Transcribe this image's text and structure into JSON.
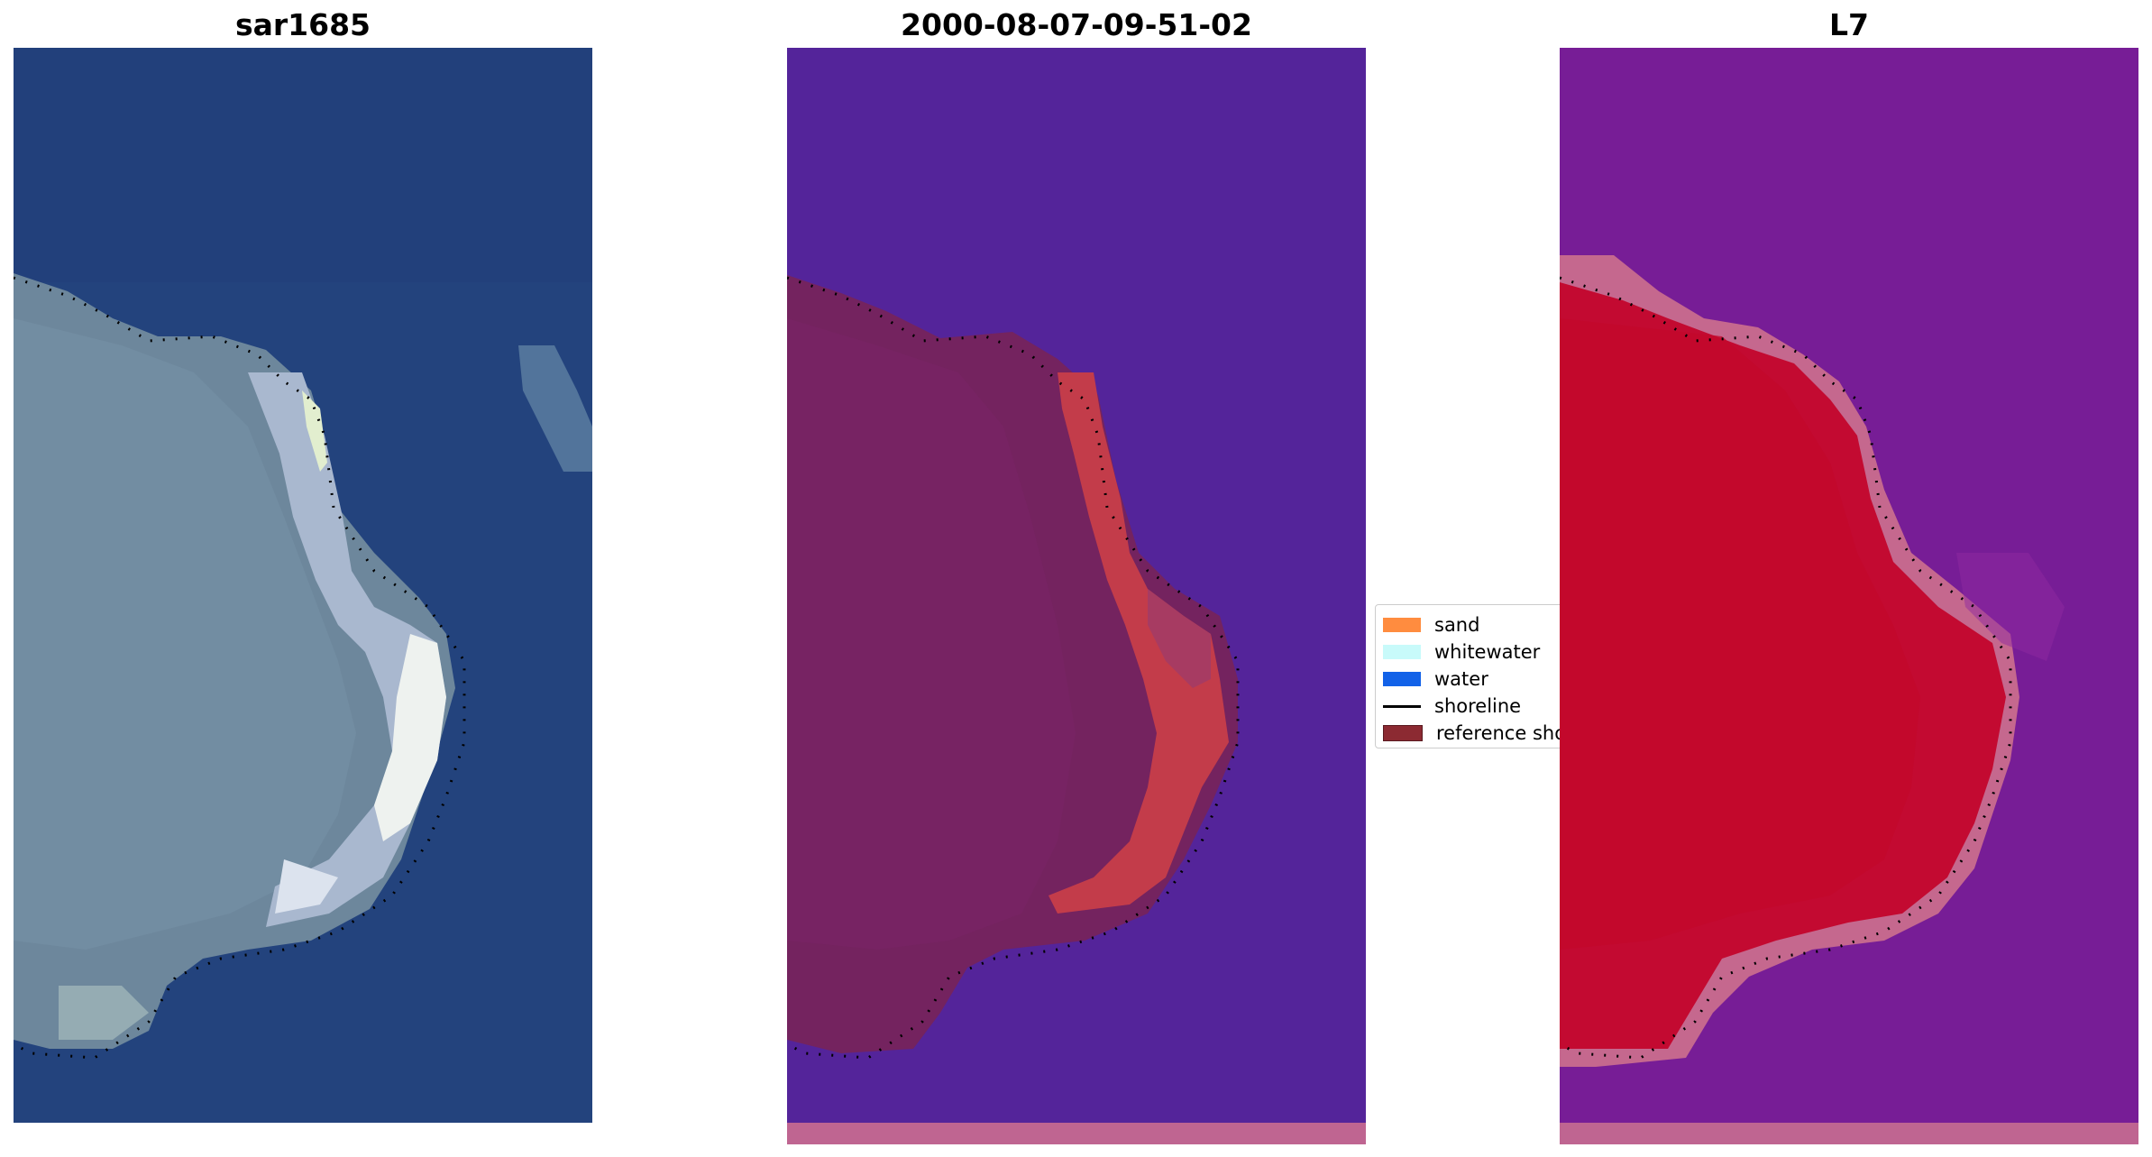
{
  "panels": [
    {
      "title": "sar1685"
    },
    {
      "title": "2000-08-07-09-51-02"
    },
    {
      "title": "L7"
    }
  ],
  "legend": {
    "items": [
      {
        "label": "sand",
        "color": "#ff8c3f"
      },
      {
        "label": "whitewater",
        "color": "#c8fafa"
      },
      {
        "label": "water",
        "color": "#1262e8"
      },
      {
        "label": "shoreline",
        "color": "#000000"
      },
      {
        "label": "reference shoreline",
        "color": "#8c2a32"
      }
    ]
  },
  "colors": {
    "ocean_rgb": "#23427c",
    "sand_rgb": "#6f8aa0",
    "classified_water": "#54249a",
    "classified_sand": "#74235f",
    "classified_whitewater": "#c33c4a",
    "index_water": "#7a1e99",
    "index_land": "#c3092f",
    "bottom_strip": "#bf6591"
  }
}
